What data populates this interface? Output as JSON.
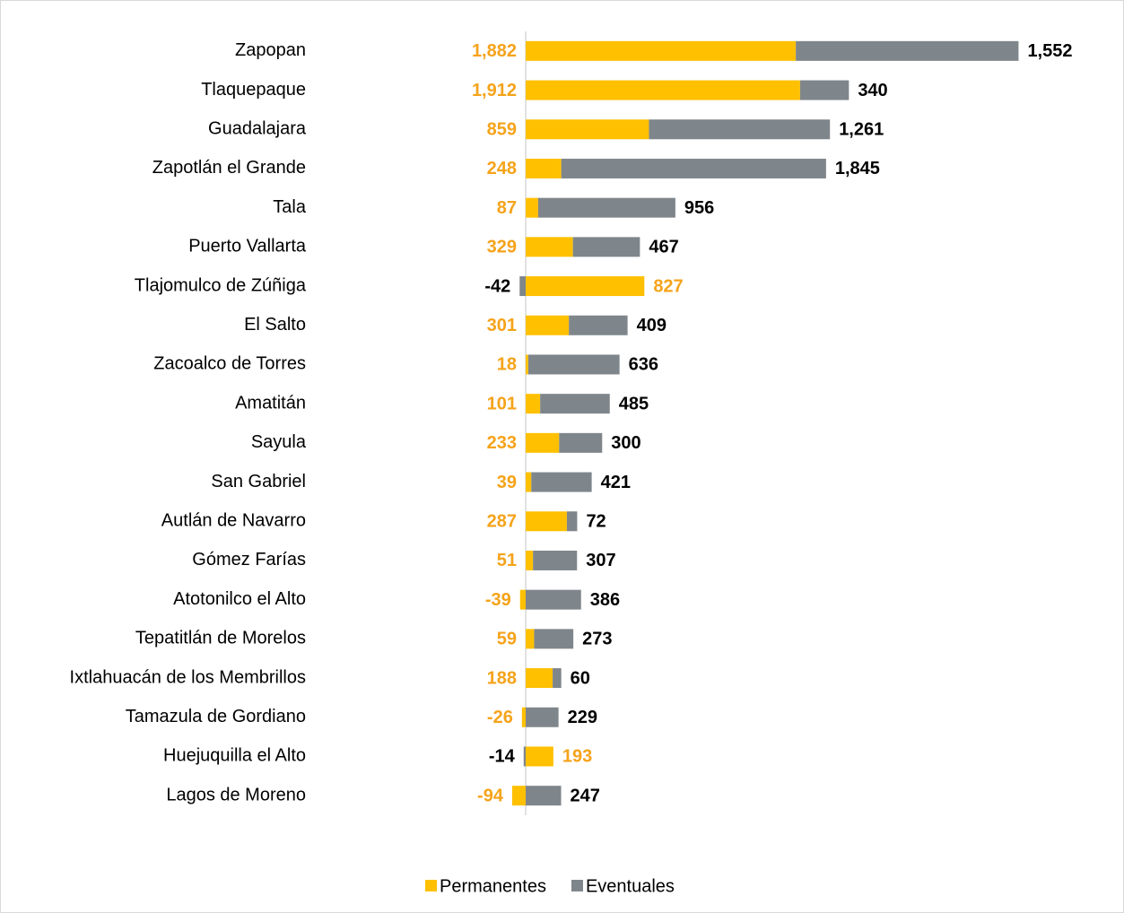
{
  "chart_data": {
    "type": "bar",
    "orientation": "horizontal",
    "stacked": true,
    "categories": [
      "Zapopan",
      "Tlaquepaque",
      "Guadalajara",
      "Zapotlán el Grande",
      "Tala",
      "Puerto Vallarta",
      "Tlajomulco de Zúñiga",
      "El Salto",
      "Zacoalco de Torres",
      "Amatitán",
      "Sayula",
      "San Gabriel",
      "Autlán de Navarro",
      "Gómez Farías",
      "Atotonilco el Alto",
      "Tepatitlán de Morelos",
      "Ixtlahuacán de los Membrillos",
      "Tamazula de Gordiano",
      "Huejuquilla el Alto",
      "Lagos de Moreno"
    ],
    "series": [
      {
        "name": "Permanentes",
        "color": "#FFC000",
        "values": [
          1882,
          1912,
          859,
          248,
          87,
          329,
          827,
          301,
          18,
          101,
          233,
          39,
          287,
          51,
          -39,
          59,
          188,
          -26,
          193,
          -94
        ],
        "value_labels": [
          "1,882",
          "1,912",
          "859",
          "248",
          "87",
          "329",
          "827",
          "301",
          "18",
          "101",
          "233",
          "39",
          "287",
          "51",
          "-39",
          "59",
          "188",
          "-26",
          "193",
          "-94"
        ]
      },
      {
        "name": "Eventuales",
        "color": "#7F868B",
        "values": [
          1552,
          340,
          1261,
          1845,
          956,
          467,
          -42,
          409,
          636,
          485,
          300,
          421,
          72,
          307,
          386,
          273,
          60,
          229,
          -14,
          247
        ],
        "value_labels": [
          "1,552",
          "340",
          "1,261",
          "1,845",
          "956",
          "467",
          "-42",
          "409",
          "636",
          "485",
          "300",
          "421",
          "72",
          "307",
          "386",
          "273",
          "60",
          "229",
          "-14",
          "247"
        ]
      }
    ],
    "xlim": [
      -200,
      3600
    ],
    "legend": "bottom"
  }
}
